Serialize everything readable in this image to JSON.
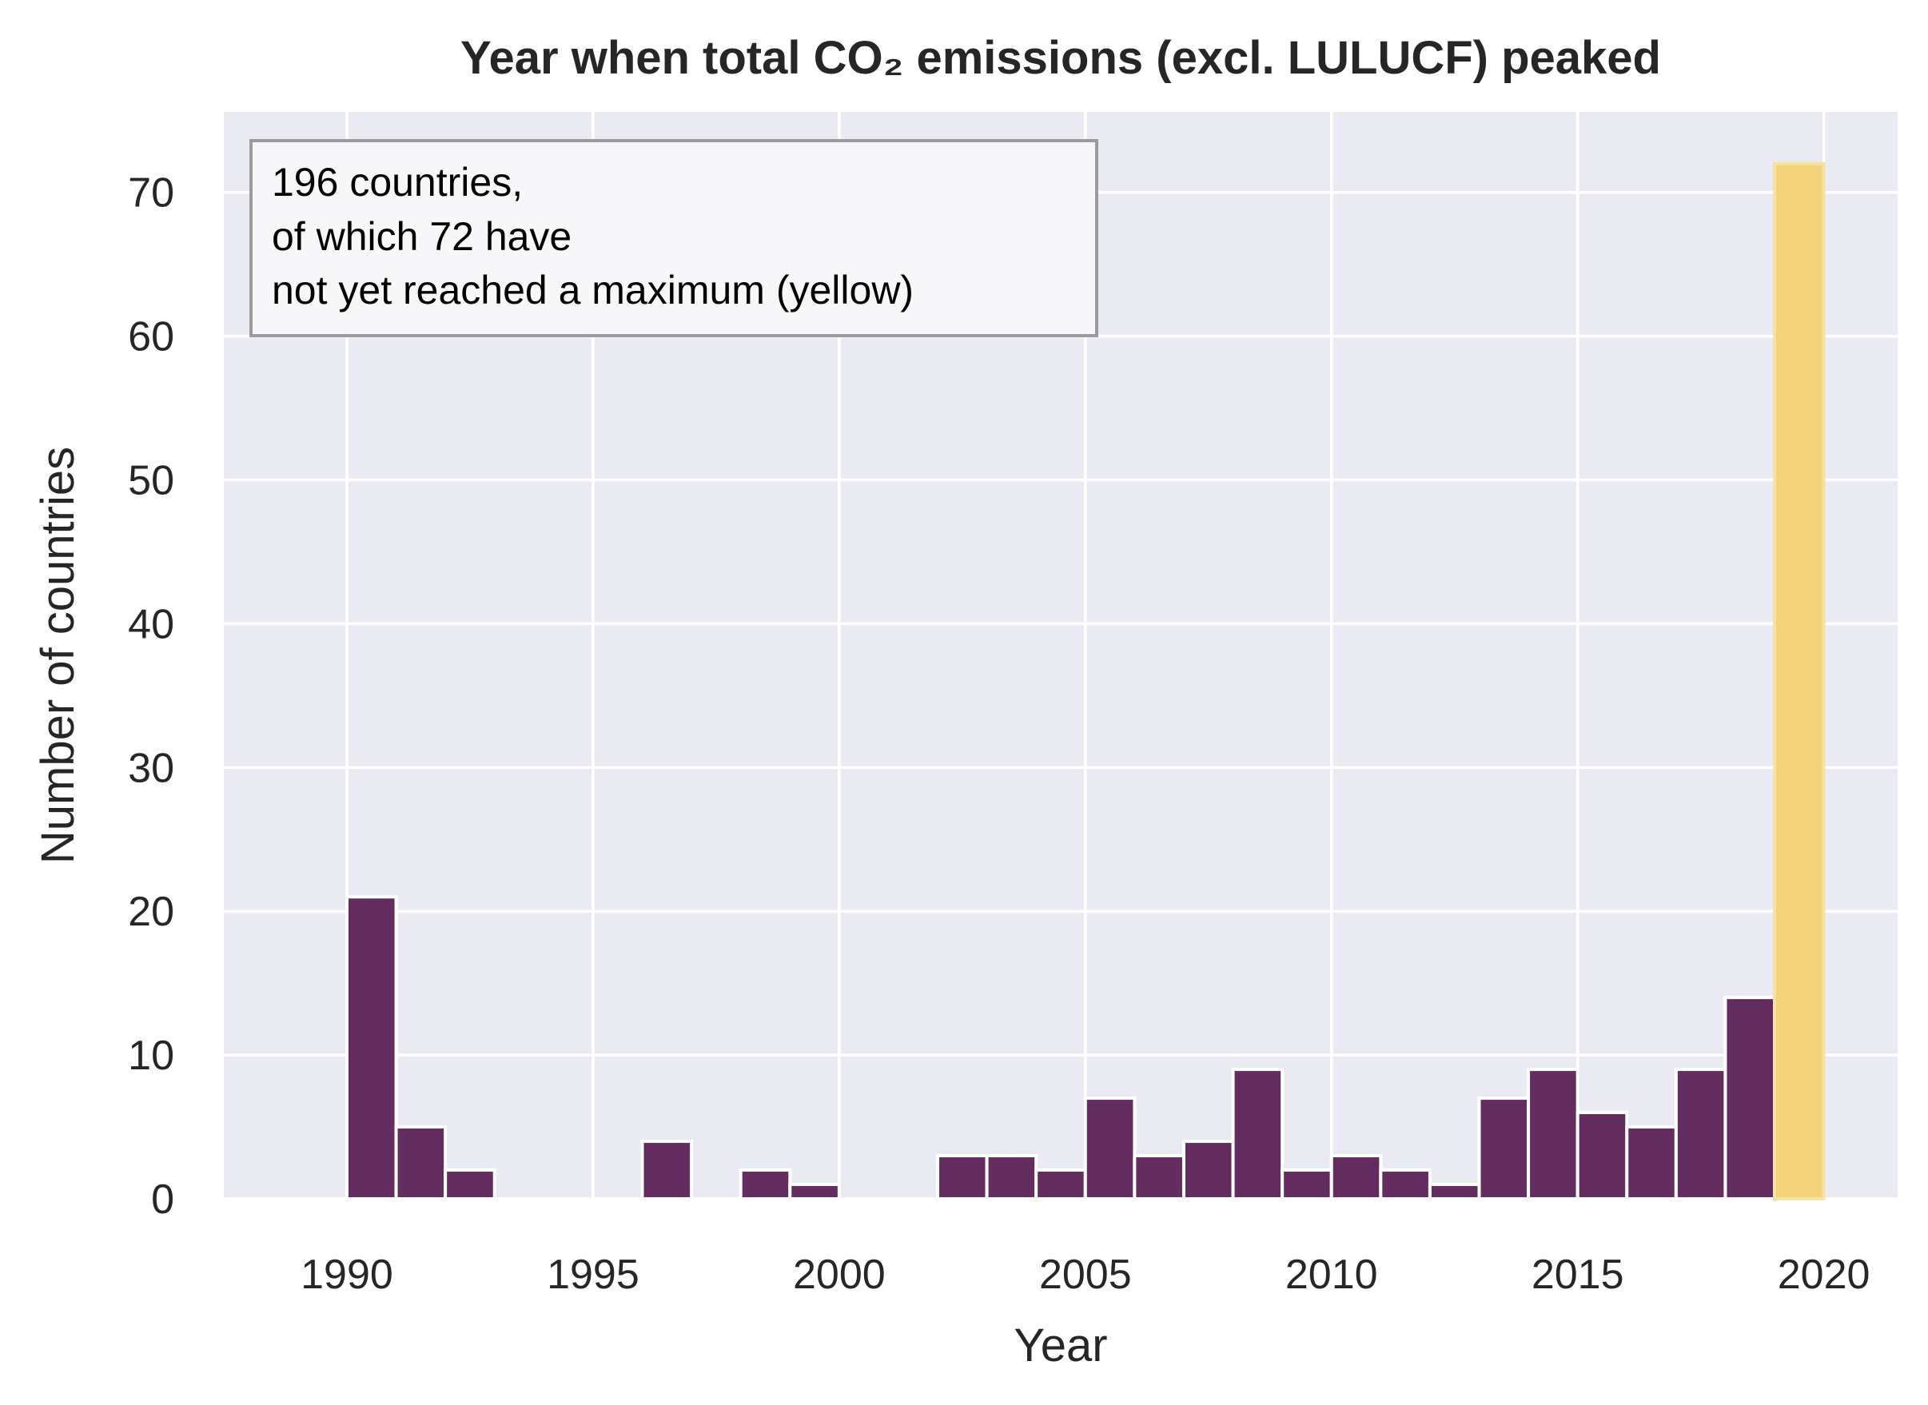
{
  "chart_data": {
    "type": "bar",
    "title": "Year when total CO₂ emissions (excl. LULUCF) peaked",
    "xlabel": "Year",
    "ylabel": "Number of countries",
    "xlim": [
      1987.5,
      2021.5
    ],
    "ylim": [
      0,
      75.6
    ],
    "xticks": [
      1990,
      1995,
      2000,
      2005,
      2010,
      2015,
      2020
    ],
    "yticks": [
      0,
      10,
      20,
      30,
      40,
      50,
      60,
      70
    ],
    "grid": true,
    "bin_width": 1,
    "bin_starts": [
      1990,
      1991,
      1992,
      1996,
      1998,
      1999,
      2002,
      2003,
      2004,
      2005,
      2006,
      2007,
      2008,
      2009,
      2010,
      2011,
      2012,
      2013,
      2014,
      2015,
      2016,
      2017,
      2018
    ],
    "values": [
      21,
      5,
      2,
      4,
      2,
      1,
      3,
      3,
      2,
      7,
      3,
      4,
      9,
      2,
      3,
      2,
      1,
      7,
      9,
      6,
      5,
      9,
      14
    ],
    "highlight": {
      "bin_start": 2019,
      "value": 72,
      "label": "not yet reached a maximum"
    },
    "annotation": [
      "196 countries,",
      "of which 72 have",
      "not yet reached a maximum (yellow)"
    ],
    "colors": {
      "bars": "#632d5f",
      "highlight": "#f2d27a",
      "background": "#eaeaf2",
      "grid": "#ffffff"
    }
  }
}
